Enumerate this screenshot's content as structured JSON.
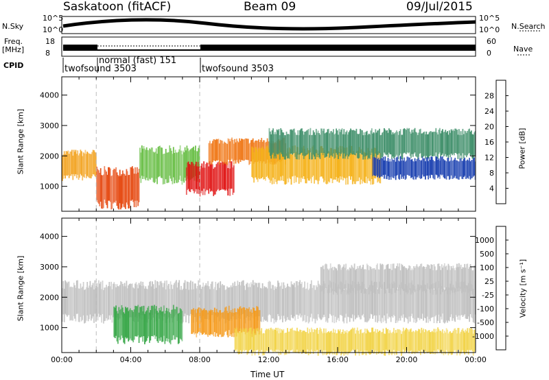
{
  "header": {
    "station": "Saskatoon (fitACF)",
    "beam": "Beam 09",
    "date": "09/Jul/2015"
  },
  "summary_panel": {
    "nsky_label": "N.Sky",
    "nsearch_label": "N.Search",
    "nsky_ticks": [
      "10^5",
      "10^0"
    ],
    "nsearch_ticks": [
      "10^5",
      "10^0"
    ],
    "freq_label_line1": "Freq.",
    "freq_label_line2": "[MHz]",
    "freq_ticks": [
      "18",
      "8"
    ],
    "nave_label": "Nave",
    "nave_ticks": [
      "60",
      "0"
    ],
    "cpid_label": "CPID",
    "cpid_segments": [
      {
        "label": "twofsound 3503",
        "start_h": 0
      },
      {
        "label": "normal (fast) 151",
        "start_h": 2
      },
      {
        "label": "twofsound 3503",
        "start_h": 8
      }
    ]
  },
  "chart_data": [
    {
      "type": "heatmap",
      "title": "",
      "xlabel": "",
      "ylabel": "Slant Range [km]",
      "xlim": [
        0,
        24
      ],
      "ylim": [
        180,
        4600
      ],
      "yticks": [
        1000,
        2000,
        3000,
        4000
      ],
      "colorbar": {
        "label": "Power [dB]",
        "ticks": [
          "4",
          "8",
          "12",
          "16",
          "20",
          "24",
          "28"
        ],
        "colors": [
          "#0a14ff",
          "#1a40b0",
          "#2f6aa6",
          "#3f8f6a",
          "#55b84a",
          "#a8d64a",
          "#f0d020",
          "#f5a81a",
          "#f07010",
          "#e83a10",
          "#e01010"
        ]
      },
      "bands": [
        {
          "t0": 0.0,
          "t1": 2.0,
          "r0": 1300,
          "r1": 2100,
          "color": "#f2a11c"
        },
        {
          "t0": 2.0,
          "t1": 4.5,
          "r0": 400,
          "r1": 1500,
          "color": "#e64a12"
        },
        {
          "t0": 4.5,
          "t1": 8.0,
          "r0": 1200,
          "r1": 2200,
          "color": "#6cc04a"
        },
        {
          "t0": 7.2,
          "t1": 10.0,
          "r0": 800,
          "r1": 1700,
          "color": "#e01010"
        },
        {
          "t0": 8.5,
          "t1": 13.0,
          "r0": 1800,
          "r1": 2500,
          "color": "#f07818"
        },
        {
          "t0": 11.0,
          "t1": 18.5,
          "r0": 1200,
          "r1": 2200,
          "color": "#f5b21a"
        },
        {
          "t0": 12.0,
          "t1": 24.0,
          "r0": 2000,
          "r1": 2800,
          "color": "#3f8f6a"
        },
        {
          "t0": 18.0,
          "t1": 24.0,
          "r0": 1300,
          "r1": 1900,
          "color": "#1a40b0"
        }
      ]
    },
    {
      "type": "heatmap",
      "title": "",
      "xlabel": "Time UT",
      "ylabel": "Slant Range [km]",
      "xlim": [
        0,
        24
      ],
      "ylim": [
        180,
        4600
      ],
      "yticks": [
        1000,
        2000,
        3000,
        4000
      ],
      "xticks": [
        "00:00",
        "04:00",
        "08:00",
        "12:00",
        "16:00",
        "20:00",
        "00:00"
      ],
      "colorbar": {
        "label": "Velocity [m s⁻¹]",
        "ticks": [
          "1000",
          "500",
          "100",
          "25",
          "-25",
          "-100",
          "-500",
          "-1000"
        ],
        "colors": [
          "#1f3fb0",
          "#3a6fb8",
          "#2f8a4a",
          "#6fd040",
          "#c0c0c0",
          "#f2d44a",
          "#f59a1a",
          "#ee5a10",
          "#e01010"
        ]
      },
      "bands": [
        {
          "t0": 0.0,
          "t1": 24.0,
          "r0": 1300,
          "r1": 2400,
          "color": "#c0c0c0"
        },
        {
          "t0": 3.0,
          "t1": 7.0,
          "r0": 600,
          "r1": 1600,
          "color": "#3aa84a"
        },
        {
          "t0": 7.5,
          "t1": 11.5,
          "r0": 800,
          "r1": 1600,
          "color": "#f59a1a"
        },
        {
          "t0": 10.0,
          "t1": 24.0,
          "r0": 180,
          "r1": 900,
          "color": "#f2d44a"
        },
        {
          "t0": 15.0,
          "t1": 24.0,
          "r0": 2200,
          "r1": 3000,
          "color": "#c0c0c0"
        }
      ]
    }
  ]
}
